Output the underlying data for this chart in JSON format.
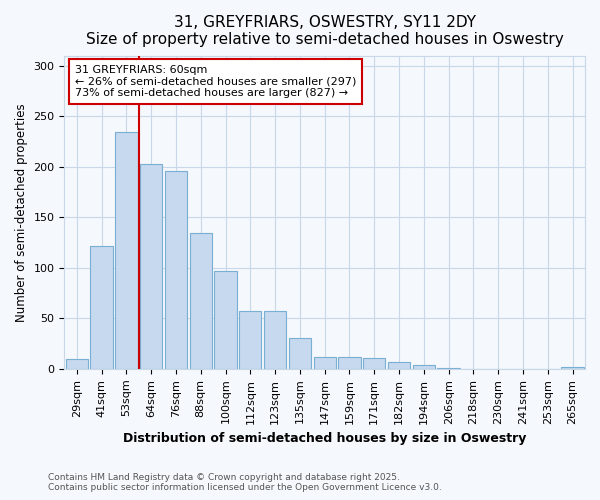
{
  "title": "31, GREYFRIARS, OSWESTRY, SY11 2DY",
  "subtitle": "Size of property relative to semi-detached houses in Oswestry",
  "xlabel": "Distribution of semi-detached houses by size in Oswestry",
  "ylabel": "Number of semi-detached properties",
  "categories": [
    "29sqm",
    "41sqm",
    "53sqm",
    "64sqm",
    "76sqm",
    "88sqm",
    "100sqm",
    "112sqm",
    "123sqm",
    "135sqm",
    "147sqm",
    "159sqm",
    "171sqm",
    "182sqm",
    "194sqm",
    "206sqm",
    "218sqm",
    "230sqm",
    "241sqm",
    "253sqm",
    "265sqm"
  ],
  "values": [
    10,
    122,
    234,
    203,
    196,
    134,
    97,
    57,
    57,
    31,
    12,
    12,
    11,
    7,
    4,
    1,
    0,
    0,
    0,
    0,
    2
  ],
  "bar_color": "#c6d9ee",
  "bar_edge_color": "#7aafd4",
  "vline_index": 2,
  "vline_color": "#cc0000",
  "annotation_text": "31 GREYFRIARS: 60sqm\n← 26% of semi-detached houses are smaller (297)\n73% of semi-detached houses are larger (827) →",
  "annotation_box_facecolor": "#ffffff",
  "annotation_box_edgecolor": "#cc0000",
  "ylim": [
    0,
    310
  ],
  "yticks": [
    0,
    50,
    100,
    150,
    200,
    250,
    300
  ],
  "footer_line1": "Contains HM Land Registry data © Crown copyright and database right 2025.",
  "footer_line2": "Contains public sector information licensed under the Open Government Licence v3.0.",
  "fig_facecolor": "#f5f8fc",
  "plot_facecolor": "#f5f8fc",
  "grid_color": "#c8d8e8",
  "title_fontsize": 11,
  "subtitle_fontsize": 9.5,
  "tick_fontsize": 8,
  "label_fontsize": 9,
  "ylabel_fontsize": 8.5
}
